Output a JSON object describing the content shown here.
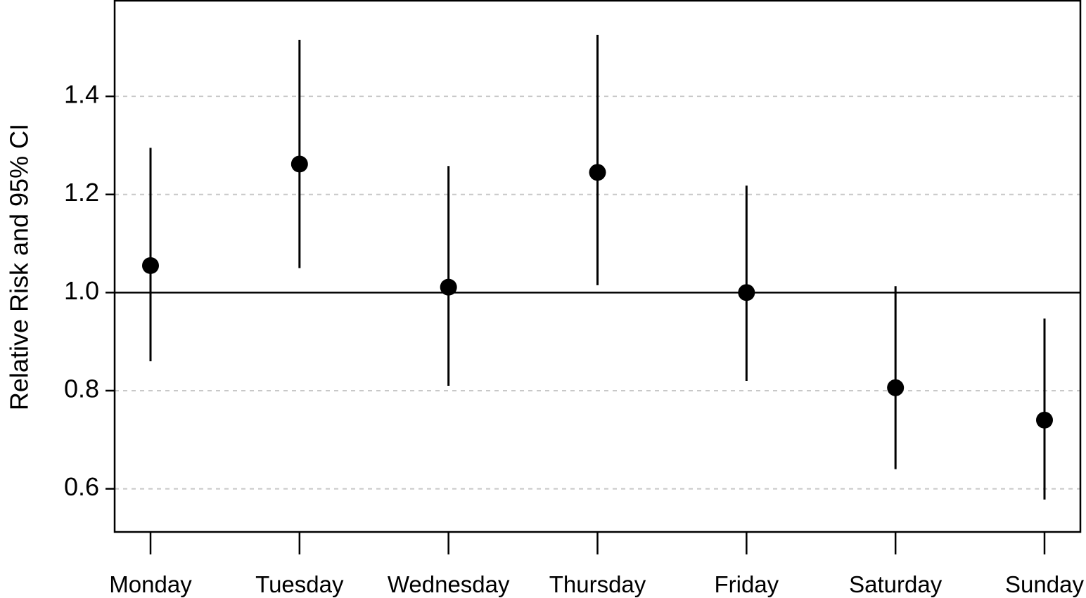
{
  "chart_data": {
    "type": "scatter",
    "subtype": "point-estimate-with-confidence-intervals",
    "categories": [
      "Monday",
      "Tuesday",
      "Wednesday",
      "Thursday",
      "Friday",
      "Saturday",
      "Sunday"
    ],
    "series": [
      {
        "estimate": [
          1.055,
          1.262,
          1.011,
          1.245,
          1.0,
          0.806,
          0.74
        ],
        "ci_lower": [
          0.86,
          1.05,
          0.81,
          1.015,
          0.82,
          0.64,
          0.578
        ],
        "ci_upper": [
          1.295,
          1.515,
          1.258,
          1.525,
          1.218,
          1.013,
          0.947
        ]
      }
    ],
    "ylabel": "Relative Risk and 95% CI",
    "xlabel": "",
    "ylim": [
      0.512,
      1.595
    ],
    "yticks": [
      0.6,
      0.8,
      1.0,
      1.2,
      1.4
    ],
    "ytick_labels": [
      "0.6",
      "0.8",
      "1.0",
      "1.2",
      "1.4"
    ],
    "reference_line": 1.0,
    "dashed_gridlines_at": [
      0.6,
      0.8,
      1.2,
      1.4
    ],
    "grid": true,
    "legend": "none",
    "colors": {
      "marker": "#000000",
      "gridline": "#c8c8c8"
    }
  }
}
